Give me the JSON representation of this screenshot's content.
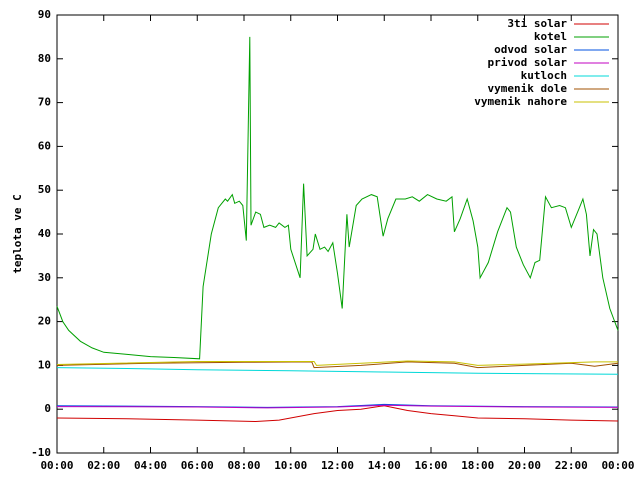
{
  "chart_data": {
    "type": "line",
    "ylabel": "teplota ve C",
    "xlim": [
      0,
      24
    ],
    "ylim": [
      -10,
      90
    ],
    "xticks": [
      {
        "value": 0,
        "label": "00:00"
      },
      {
        "value": 2,
        "label": "02:00"
      },
      {
        "value": 4,
        "label": "04:00"
      },
      {
        "value": 6,
        "label": "06:00"
      },
      {
        "value": 8,
        "label": "08:00"
      },
      {
        "value": 10,
        "label": "10:00"
      },
      {
        "value": 12,
        "label": "12:00"
      },
      {
        "value": 14,
        "label": "14:00"
      },
      {
        "value": 16,
        "label": "16:00"
      },
      {
        "value": 18,
        "label": "18:00"
      },
      {
        "value": 20,
        "label": "20:00"
      },
      {
        "value": 22,
        "label": "22:00"
      },
      {
        "value": 24,
        "label": "00:00"
      }
    ],
    "yticks": [
      -10,
      0,
      10,
      20,
      30,
      40,
      50,
      60,
      70,
      80,
      90
    ],
    "legend": "top-right",
    "series": [
      {
        "name": "3ti solar",
        "color": "#d00000",
        "x": [
          0,
          3,
          6,
          8.5,
          9.5,
          11,
          12,
          13,
          14,
          15,
          16,
          17,
          18,
          20,
          22,
          24
        ],
        "values": [
          -2,
          -2.2,
          -2.5,
          -2.8,
          -2.5,
          -1,
          -0.3,
          0,
          0.8,
          -0.3,
          -1,
          -1.5,
          -2,
          -2.2,
          -2.5,
          -2.7
        ]
      },
      {
        "name": "kotel",
        "color": "#00a000",
        "x": [
          0,
          0.25,
          0.5,
          1,
          1.5,
          2,
          3,
          4,
          5,
          6.1,
          6.25,
          6.6,
          6.9,
          7.2,
          7.3,
          7.5,
          7.6,
          7.8,
          7.95,
          8.1,
          8.25,
          8.3,
          8.5,
          8.7,
          8.85,
          9.1,
          9.35,
          9.5,
          9.75,
          9.9,
          10.0,
          10.4,
          10.55,
          10.7,
          10.95,
          11.05,
          11.25,
          11.45,
          11.6,
          11.8,
          12.0,
          12.2,
          12.4,
          12.5,
          12.8,
          13.05,
          13.45,
          13.7,
          13.95,
          14.15,
          14.5,
          14.9,
          15.2,
          15.5,
          15.85,
          16.25,
          16.65,
          16.9,
          17.0,
          17.25,
          17.55,
          17.8,
          18.0,
          18.1,
          18.45,
          18.85,
          19.25,
          19.4,
          19.65,
          19.95,
          20.25,
          20.45,
          20.65,
          20.9,
          21.15,
          21.5,
          21.75,
          22.0,
          22.35,
          22.5,
          22.65,
          22.8,
          22.95,
          23.1,
          23.35,
          23.65,
          24
        ],
        "values": [
          23.5,
          20,
          18,
          15.5,
          14,
          13,
          12.5,
          12,
          11.8,
          11.5,
          28,
          40,
          46,
          48,
          47.5,
          49,
          47,
          47.5,
          46.5,
          38.5,
          85,
          42,
          45,
          44.5,
          41.5,
          42,
          41.5,
          42.5,
          41.5,
          42,
          36.5,
          30,
          51.5,
          35,
          36.5,
          40,
          36.5,
          37,
          36,
          38,
          31,
          23,
          44.5,
          37,
          46.5,
          48,
          49,
          48.5,
          39.5,
          43.5,
          48,
          48,
          48.5,
          47.5,
          49,
          48,
          47.5,
          48.5,
          40.5,
          43.5,
          48,
          43,
          37,
          30,
          33.5,
          40.5,
          46,
          45,
          37,
          33,
          30,
          33.5,
          34,
          48.5,
          46,
          46.5,
          46,
          41.5,
          46,
          48,
          44.5,
          35,
          41,
          40,
          30,
          23,
          18
        ]
      },
      {
        "name": "odvod solar",
        "color": "#0050e0",
        "x": [
          0,
          6,
          9,
          12,
          14,
          16,
          20,
          24
        ],
        "values": [
          0.8,
          0.6,
          0.4,
          0.6,
          1.1,
          0.8,
          0.6,
          0.5
        ]
      },
      {
        "name": "privod solar",
        "color": "#c000c0",
        "x": [
          0,
          6,
          9,
          12,
          14,
          16,
          20,
          24
        ],
        "values": [
          0.6,
          0.5,
          0.3,
          0.5,
          0.9,
          0.7,
          0.5,
          0.4
        ]
      },
      {
        "name": "kutloch",
        "color": "#00d8d8",
        "x": [
          0,
          3,
          6,
          10,
          14,
          18,
          24
        ],
        "values": [
          9.5,
          9.3,
          9,
          8.8,
          8.5,
          8.2,
          8
        ]
      },
      {
        "name": "vymenik dole",
        "color": "#a05000",
        "x": [
          0,
          4,
          8,
          10.9,
          11,
          13,
          15,
          17,
          18,
          20,
          22,
          23,
          24
        ],
        "values": [
          10,
          10.5,
          10.7,
          10.8,
          9.5,
          10,
          10.8,
          10.5,
          9.5,
          10,
          10.5,
          9.8,
          10.5
        ]
      },
      {
        "name": "vymenik nahore",
        "color": "#c8c000",
        "x": [
          0,
          6,
          11,
          11.1,
          15,
          17,
          18,
          20,
          23,
          24
        ],
        "values": [
          10.2,
          10.9,
          10.9,
          10,
          11,
          10.8,
          10,
          10.3,
          10.8,
          10.8
        ]
      }
    ]
  }
}
